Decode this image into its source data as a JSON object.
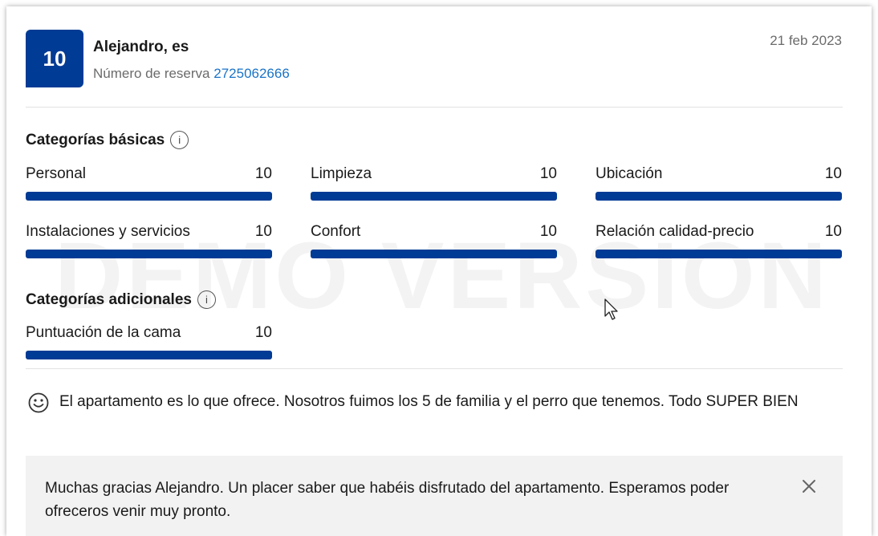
{
  "review": {
    "score": "10",
    "reviewer_name": "Alejandro, es",
    "booking_label": "Número de reserva",
    "booking_number": "2725062666",
    "date": "21 feb 2023"
  },
  "basic_categories": {
    "title": "Categorías básicas",
    "items": [
      {
        "label": "Personal",
        "score": "10",
        "fraction": 1.0
      },
      {
        "label": "Limpieza",
        "score": "10",
        "fraction": 1.0
      },
      {
        "label": "Ubicación",
        "score": "10",
        "fraction": 1.0
      },
      {
        "label": "Instalaciones y servicios",
        "score": "10",
        "fraction": 1.0
      },
      {
        "label": "Confort",
        "score": "10",
        "fraction": 1.0
      },
      {
        "label": "Relación calidad-precio",
        "score": "10",
        "fraction": 1.0
      }
    ]
  },
  "additional_categories": {
    "title": "Categorías adicionales",
    "items": [
      {
        "label": "Puntuación de la cama",
        "score": "10",
        "fraction": 1.0
      }
    ]
  },
  "comment": {
    "icon": "smiley-icon",
    "text": "El apartamento es lo que ofrece. Nosotros fuimos los 5 de familia y el perro que tenemos. Todo SUPER BIEN"
  },
  "reply": {
    "text": "Muchas gracias Alejandro. Un placer saber que habéis disfrutado del apartamento. Esperamos poder ofreceros venir muy pronto.",
    "close_icon": "close-icon"
  },
  "watermark": "DEMO VERSION",
  "colors": {
    "brand": "#003b95",
    "link": "#1a73c8",
    "reply_bg": "#f2f2f2"
  }
}
